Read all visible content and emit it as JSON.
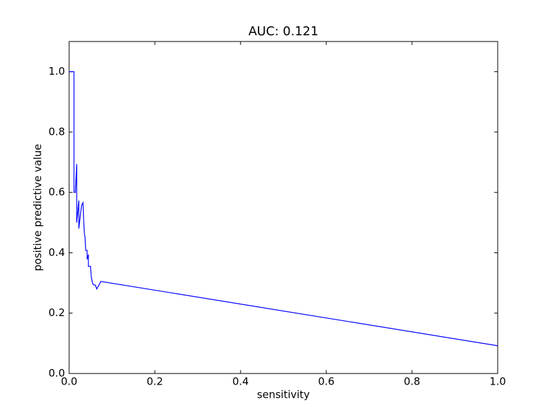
{
  "chart_data": {
    "type": "line",
    "title": "AUC: 0.121",
    "x_label": "sensitivity",
    "y_label": "positive predictive value",
    "series": [
      {
        "color": "#0000ff",
        "x": [
          0,
          0.0113,
          0.0113,
          0.0145,
          0.0177,
          0.0177,
          0.0226,
          0.0226,
          0.029,
          0.0323,
          0.0339,
          0.0355,
          0.037,
          0.0387,
          0.042,
          0.042,
          0.045,
          0.045,
          0.05,
          0.0516,
          0.0548,
          0.058,
          0.0613,
          0.0645,
          0.0742,
          1.0
        ],
        "y": [
          1.0,
          1.0,
          0.6,
          0.6,
          0.694,
          0.5,
          0.573,
          0.48,
          0.557,
          0.566,
          0.509,
          0.465,
          0.454,
          0.408,
          0.408,
          0.378,
          0.394,
          0.355,
          0.355,
          0.321,
          0.298,
          0.293,
          0.293,
          0.28,
          0.305,
          0.092
        ]
      }
    ],
    "xlim": [
      0,
      1.0
    ],
    "ylim": [
      0,
      1.1
    ],
    "xticks": [
      {
        "value": 0,
        "label": "0.0"
      },
      0.2,
      0.4,
      0.6,
      0.8,
      {
        "value": 1.0,
        "label": "1.0"
      }
    ],
    "yticks": [
      {
        "value": 0,
        "label": "0.0"
      },
      0.2,
      0.4,
      0.6,
      0.8,
      {
        "value": 1.0,
        "label": "1.0"
      }
    ]
  }
}
